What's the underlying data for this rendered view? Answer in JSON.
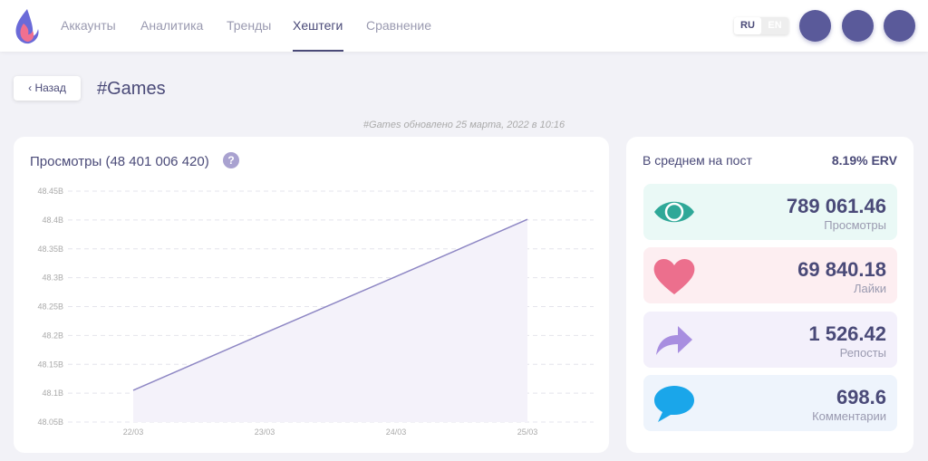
{
  "header": {
    "nav": [
      "Аккаунты",
      "Аналитика",
      "Тренды",
      "Хештеги",
      "Сравнение"
    ],
    "active_nav": 3,
    "languages": [
      "RU",
      "EN"
    ]
  },
  "back_button": "Назад",
  "page_title": "#Games",
  "updated_note": "#Games обновлено 25 марта, 2022 в 10:16",
  "chart_data": {
    "type": "line",
    "title": "Просмотры (48 401 006 420)",
    "categories": [
      "22/03",
      "23/03",
      "24/03",
      "25/03"
    ],
    "series": [
      {
        "name": "Просмотры",
        "color": "#8e87c4",
        "values": [
          48105000000,
          48204000000,
          48302000000,
          48401006420
        ]
      }
    ],
    "ylim": [
      48050000000,
      48450000000
    ],
    "yticks": [
      {
        "value": 48050000000,
        "label": "48.05B"
      },
      {
        "value": 48100000000,
        "label": "48.1B"
      },
      {
        "value": 48150000000,
        "label": "48.15B"
      },
      {
        "value": 48200000000,
        "label": "48.2B"
      },
      {
        "value": 48250000000,
        "label": "48.25B"
      },
      {
        "value": 48300000000,
        "label": "48.3B"
      },
      {
        "value": 48350000000,
        "label": "48.35B"
      },
      {
        "value": 48400000000,
        "label": "48.4B"
      },
      {
        "value": 48450000000,
        "label": "48.45B"
      }
    ],
    "grid": true,
    "area_color": "#f4f2fa"
  },
  "stats": {
    "title": "В среднем на пост",
    "erv": "8.19% ERV",
    "items": [
      {
        "value": "789 061.46",
        "label": "Просмотры"
      },
      {
        "value": "69 840.18",
        "label": "Лайки"
      },
      {
        "value": "1 526.42",
        "label": "Репосты"
      },
      {
        "value": "698.6",
        "label": "Комментарии"
      }
    ]
  }
}
